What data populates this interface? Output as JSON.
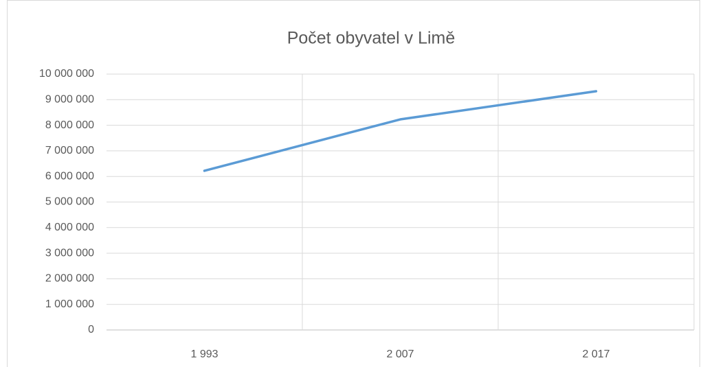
{
  "chart_data": {
    "type": "line",
    "title": "Počet obyvatel v Limě",
    "categories": [
      "1 993",
      "2 007",
      "2 017"
    ],
    "values": [
      6220000,
      8230000,
      9330000
    ],
    "color": "#5b9bd5",
    "ylim": [
      0,
      10000000
    ],
    "yticks": [
      0,
      {
        "value": 1000000,
        "label": "1 000 000"
      },
      {
        "value": 2000000,
        "label": "2 000 000"
      },
      {
        "value": 3000000,
        "label": "3 000 000"
      },
      {
        "value": 4000000,
        "label": "4 000 000"
      },
      {
        "value": 5000000,
        "label": "5 000 000"
      },
      {
        "value": 6000000,
        "label": "6 000 000"
      },
      {
        "value": 7000000,
        "label": "7 000 000"
      },
      {
        "value": 8000000,
        "label": "8 000 000"
      },
      {
        "value": 9000000,
        "label": "9 000 000"
      },
      {
        "value": 10000000,
        "label": "10 000 000"
      }
    ],
    "grid": true
  }
}
